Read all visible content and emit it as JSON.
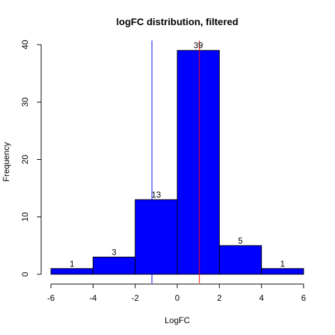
{
  "chart_data": {
    "type": "bar",
    "title": "logFC distribution, filtered",
    "xlabel": "LogFC",
    "ylabel": "Frequency",
    "bins": [
      {
        "x0": -6,
        "x1": -4,
        "count": 1
      },
      {
        "x0": -4,
        "x1": -2,
        "count": 3
      },
      {
        "x0": -2,
        "x1": 0,
        "count": 13
      },
      {
        "x0": 0,
        "x1": 2,
        "count": 39
      },
      {
        "x0": 2,
        "x1": 4,
        "count": 5
      },
      {
        "x0": 4,
        "x1": 6,
        "count": 1
      }
    ],
    "bar_labels": [
      "1",
      "3",
      "13",
      "39",
      "5",
      "1"
    ],
    "xlim": [
      -6,
      6
    ],
    "ylim": [
      0,
      40
    ],
    "x_ticks": [
      -6,
      -4,
      -2,
      0,
      2,
      4,
      6
    ],
    "x_tick_labels": [
      "-6",
      "-4",
      "-2",
      "0",
      "2",
      "4",
      "6"
    ],
    "y_ticks": [
      0,
      10,
      20,
      30,
      40
    ],
    "y_tick_labels": [
      "0",
      "10",
      "20",
      "30",
      "40"
    ],
    "vertical_lines": [
      {
        "x": -1.2,
        "color": "#0000ff"
      },
      {
        "x": 1.05,
        "color": "#ff0000"
      }
    ],
    "bar_color": "#0000ff",
    "grid": false
  }
}
